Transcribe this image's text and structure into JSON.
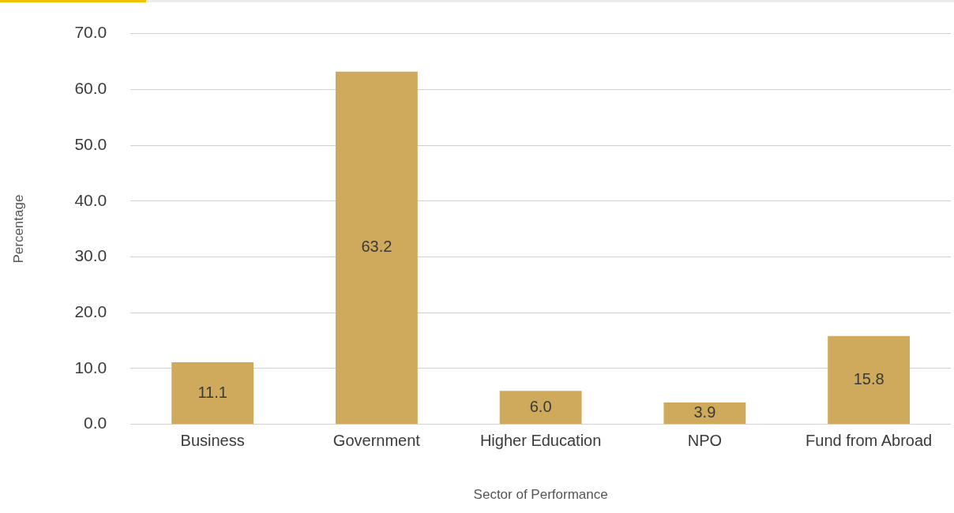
{
  "chart_data": {
    "type": "bar",
    "xlabel": "Sector of Performance",
    "ylabel": "Percentage",
    "categories": [
      "Business",
      "Government",
      "Higher Education",
      "NPO",
      "Fund from Abroad"
    ],
    "values": [
      11.1,
      63.2,
      6.0,
      3.9,
      15.8
    ],
    "value_labels": [
      "11.1",
      "63.2",
      "6.0",
      "3.9",
      "15.8"
    ],
    "color": "#cfaa5c",
    "ylim": [
      0,
      70
    ],
    "yticks": [
      {
        "value": 0,
        "label": "0.0"
      },
      {
        "value": 10,
        "label": "10.0"
      },
      {
        "value": 20,
        "label": "20.0"
      },
      {
        "value": 30,
        "label": "30.0"
      },
      {
        "value": 40,
        "label": "40.0"
      },
      {
        "value": 50,
        "label": "50.0"
      },
      {
        "value": 60,
        "label": "60.0"
      },
      {
        "value": 70,
        "label": "70.0"
      }
    ],
    "grid": "y",
    "legend": false
  }
}
